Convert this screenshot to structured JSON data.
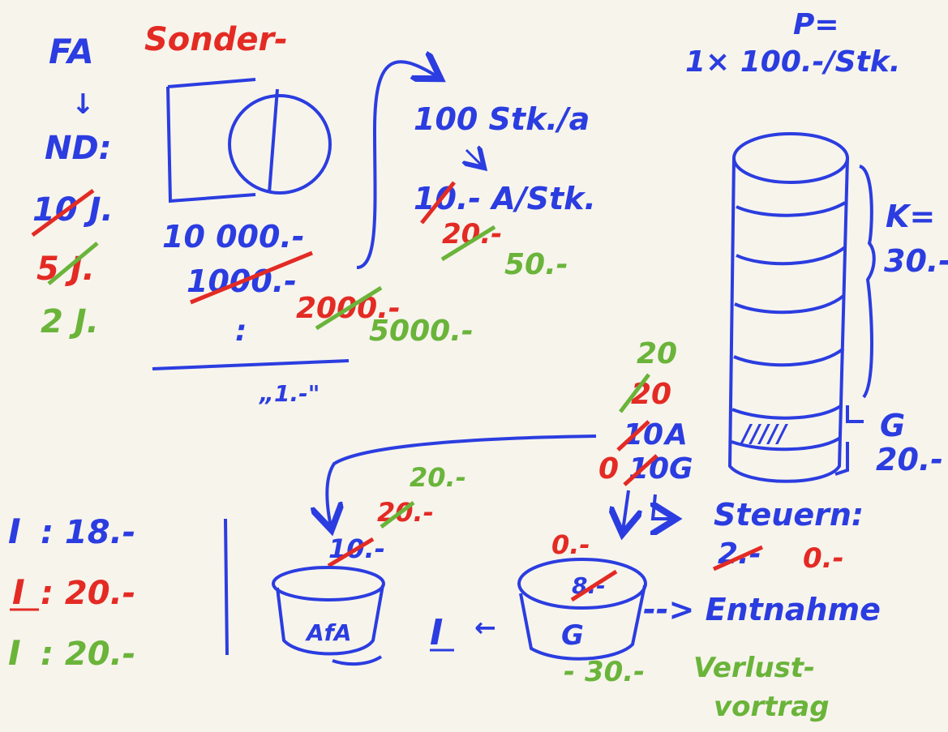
{
  "colors": {
    "background": "#f7f4ec",
    "blue": "#2b3de0",
    "red": "#e32b24",
    "green": "#6ab43a"
  },
  "left": {
    "fa": "FA",
    "sonder": "Sonder-",
    "arrow": "↓",
    "nd": "ND:",
    "years": [
      {
        "text": "10 J.",
        "color": "blue",
        "struck": true
      },
      {
        "text": "5 J.",
        "color": "red",
        "struck": true
      },
      {
        "text": "2 J.",
        "color": "green",
        "struck": false
      }
    ]
  },
  "machine": {
    "cost": "10 000.-",
    "depreciation": "1000.-",
    "dep_red": "2000.-",
    "dep_green": "5000.-",
    "dots": ":",
    "bottom": "„1.-\""
  },
  "output": {
    "units": "100 Stk./a",
    "per_unit_blue": "10.- A/Stk.",
    "per_unit_red": "20.-",
    "per_unit_green": "50.-"
  },
  "price": {
    "label": "P=",
    "value": "1× 100.-/Stk."
  },
  "cost_stack": {
    "k_label": "K=",
    "k_value": "30.-",
    "g_label": "G",
    "g_value": "20.-",
    "hatch": "/////"
  },
  "split": {
    "green": "20",
    "red": "20",
    "a_old": "10",
    "a_label": "A",
    "g_new": "0",
    "g_old": "10",
    "g_label": "G"
  },
  "steuern": {
    "label": "Steuern:",
    "old": "2.-",
    "new": "0.-"
  },
  "afa_pot": {
    "label": "AfA",
    "green": "20.-",
    "red": "20.-",
    "blue": "10.-"
  },
  "g_pot": {
    "label": "G",
    "red": "0.-",
    "inner": "8.-",
    "entnahme": "--> Entnahme",
    "loss": "- 30.-",
    "verlust": "Verlust-",
    "vortrag": "vortrag"
  },
  "income": [
    {
      "label": "I",
      "value": ": 18.-",
      "color": "blue"
    },
    {
      "label": "I",
      "value": ": 20.-",
      "color": "red"
    },
    {
      "label": "I",
      "value": ": 20.-",
      "color": "green"
    }
  ],
  "i_mid": {
    "label": "I",
    "arrow": "←"
  }
}
